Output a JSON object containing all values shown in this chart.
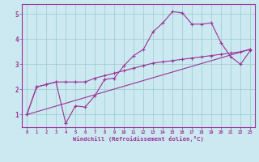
{
  "xlabel": "Windchill (Refroidissement éolien,°C)",
  "background_color": "#cce8f0",
  "line_color": "#993399",
  "grid_color": "#99cccc",
  "xlim": [
    -0.5,
    23.5
  ],
  "ylim": [
    0.5,
    5.4
  ],
  "xticks": [
    0,
    1,
    2,
    3,
    4,
    5,
    6,
    7,
    8,
    9,
    10,
    11,
    12,
    13,
    14,
    15,
    16,
    17,
    18,
    19,
    20,
    21,
    22,
    23
  ],
  "yticks": [
    1,
    2,
    3,
    4,
    5
  ],
  "line1_x": [
    0,
    1,
    2,
    3,
    4,
    5,
    6,
    7,
    8,
    9,
    10,
    11,
    12,
    13,
    14,
    15,
    16,
    17,
    18,
    19,
    20,
    21,
    22,
    23
  ],
  "line1_y": [
    1.0,
    2.1,
    2.2,
    2.3,
    0.65,
    1.35,
    1.3,
    1.75,
    2.4,
    2.45,
    2.95,
    3.35,
    3.6,
    4.3,
    4.65,
    5.1,
    5.05,
    4.6,
    4.6,
    4.65,
    3.85,
    3.3,
    3.0,
    3.55
  ],
  "line2_x": [
    0,
    1,
    2,
    3,
    4,
    5,
    6,
    7,
    8,
    9,
    10,
    11,
    12,
    13,
    14,
    15,
    16,
    17,
    18,
    19,
    20,
    21,
    22,
    23
  ],
  "line2_y": [
    1.0,
    2.1,
    2.2,
    2.3,
    2.3,
    2.3,
    2.3,
    2.45,
    2.55,
    2.65,
    2.75,
    2.85,
    2.95,
    3.05,
    3.1,
    3.15,
    3.2,
    3.25,
    3.3,
    3.35,
    3.4,
    3.45,
    3.5,
    3.6
  ],
  "line3_x": [
    0,
    23
  ],
  "line3_y": [
    1.0,
    3.6
  ]
}
